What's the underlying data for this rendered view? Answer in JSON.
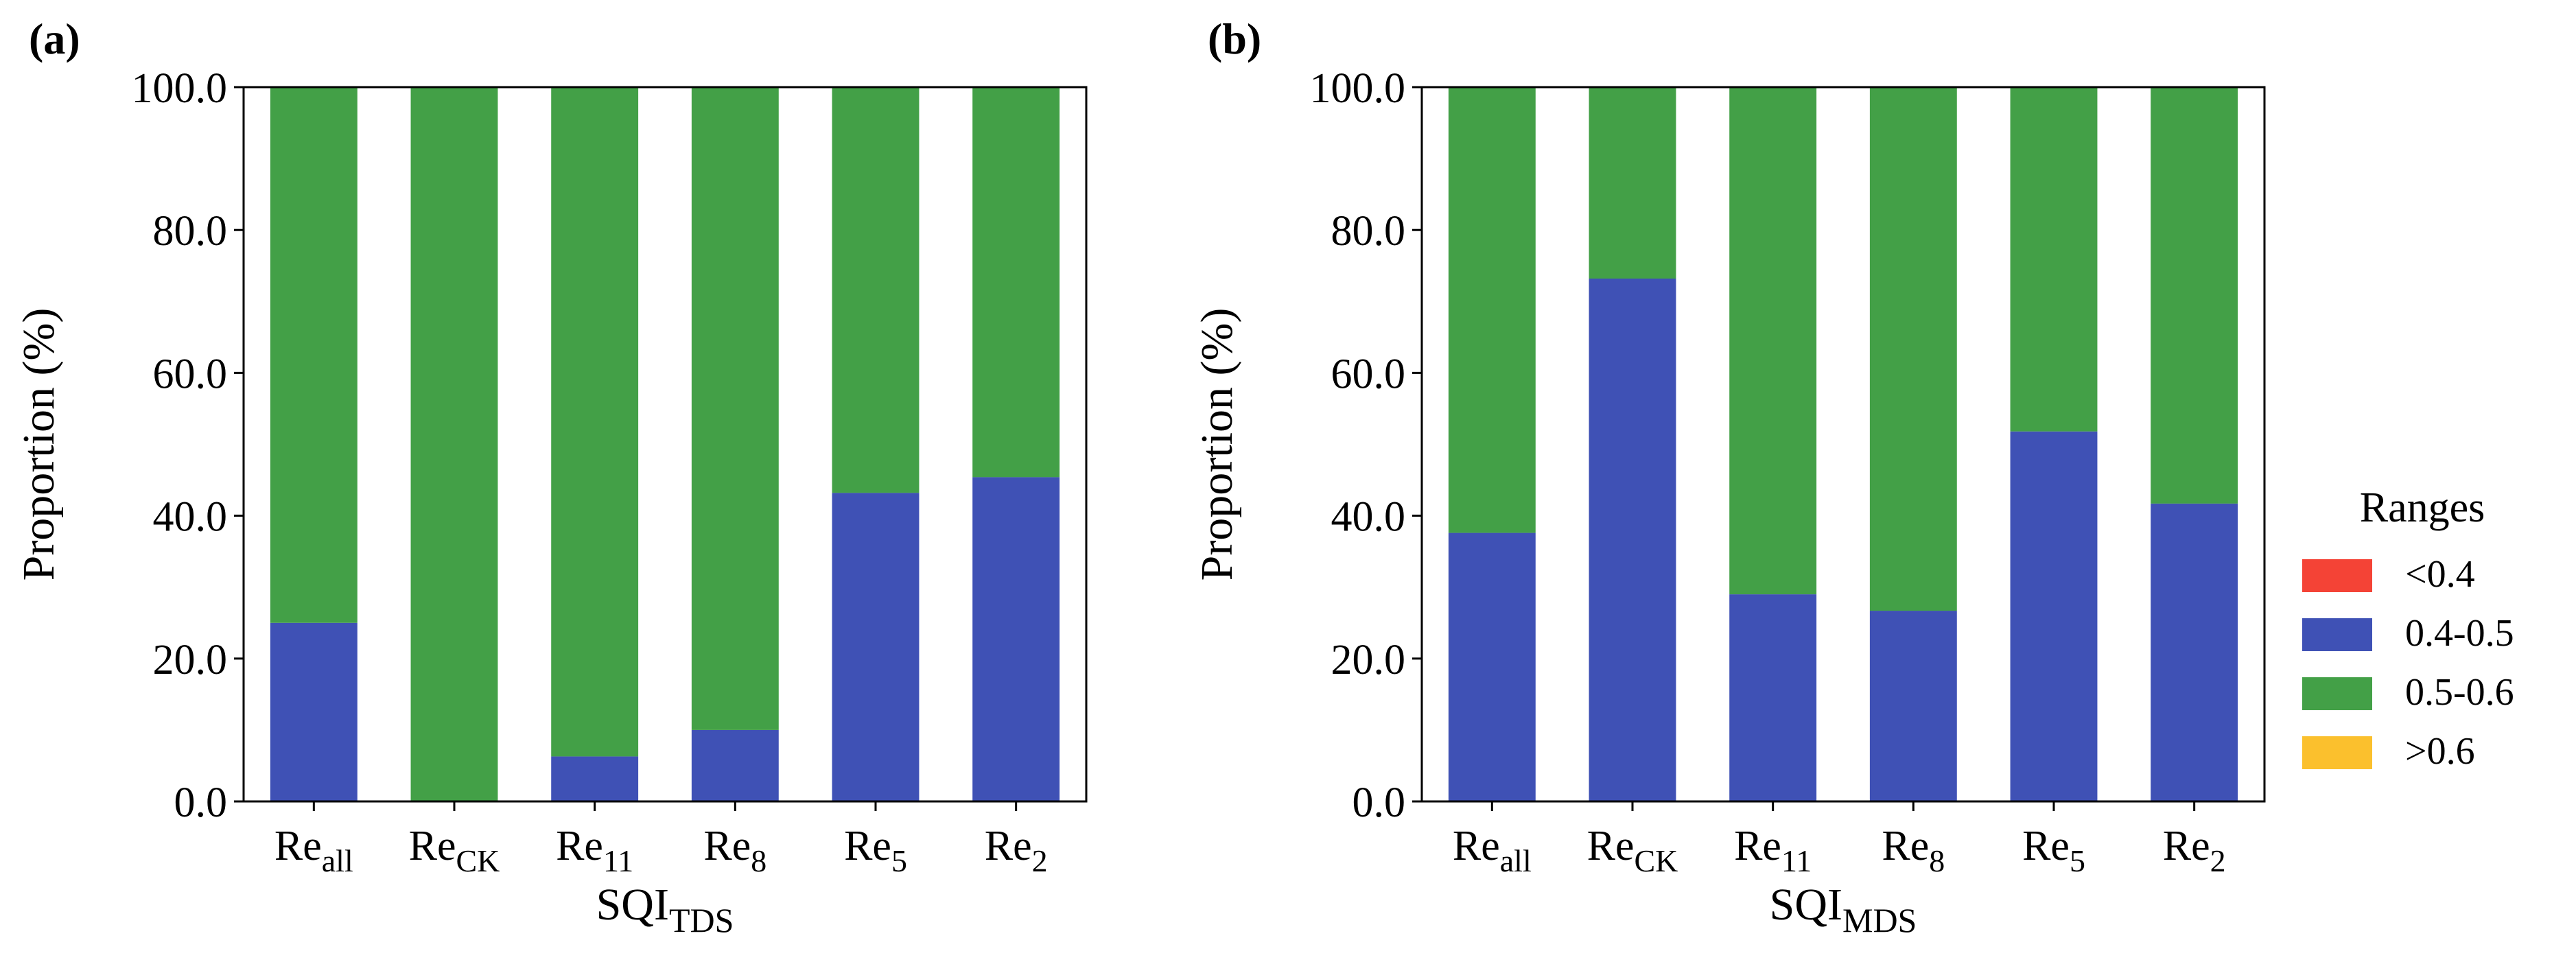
{
  "legend": {
    "title": "Ranges",
    "items": [
      {
        "label": "<0.4",
        "color": "#f44336"
      },
      {
        "label": "0.4-0.5",
        "color": "#3f51b5"
      },
      {
        "label": "0.5-0.6",
        "color": "#43a047"
      },
      {
        "label": ">0.6",
        "color": "#fbc02d"
      }
    ],
    "placement": "right"
  },
  "chart_data": [
    {
      "type": "bar",
      "stacked": true,
      "panel": "(a)",
      "xlabel": {
        "base": "SQI",
        "sub": "TDS"
      },
      "ylabel": "Proportion (%)",
      "ylim": [
        0,
        100
      ],
      "yticks": [
        "0.0",
        "20.0",
        "40.0",
        "60.0",
        "80.0",
        "100.0"
      ],
      "categories": [
        {
          "base": "Re",
          "sub": "all"
        },
        {
          "base": "Re",
          "sub": "CK"
        },
        {
          "base": "Re",
          "sub": "11"
        },
        {
          "base": "Re",
          "sub": "8"
        },
        {
          "base": "Re",
          "sub": "5"
        },
        {
          "base": "Re",
          "sub": "2"
        }
      ],
      "series": [
        {
          "name": "<0.4",
          "values": [
            0,
            0,
            0,
            0,
            0,
            0
          ]
        },
        {
          "name": "0.4-0.5",
          "values": [
            25.0,
            0.0,
            6.3,
            10.0,
            43.2,
            45.4
          ]
        },
        {
          "name": "0.5-0.6",
          "values": [
            75.0,
            100.0,
            93.7,
            90.0,
            56.8,
            54.6
          ]
        },
        {
          "name": ">0.6",
          "values": [
            0,
            0,
            0,
            0,
            0,
            0
          ]
        }
      ],
      "grid": false
    },
    {
      "type": "bar",
      "stacked": true,
      "panel": "(b)",
      "xlabel": {
        "base": "SQI",
        "sub": "MDS"
      },
      "ylabel": "Proportion (%)",
      "ylim": [
        0,
        100
      ],
      "yticks": [
        "0.0",
        "20.0",
        "40.0",
        "60.0",
        "80.0",
        "100.0"
      ],
      "categories": [
        {
          "base": "Re",
          "sub": "all"
        },
        {
          "base": "Re",
          "sub": "CK"
        },
        {
          "base": "Re",
          "sub": "11"
        },
        {
          "base": "Re",
          "sub": "8"
        },
        {
          "base": "Re",
          "sub": "5"
        },
        {
          "base": "Re",
          "sub": "2"
        }
      ],
      "series": [
        {
          "name": "<0.4",
          "values": [
            0,
            0,
            0,
            0,
            0,
            0
          ]
        },
        {
          "name": "0.4-0.5",
          "values": [
            37.6,
            73.2,
            29.0,
            26.7,
            51.8,
            41.7
          ]
        },
        {
          "name": "0.5-0.6",
          "values": [
            62.4,
            26.8,
            71.0,
            73.3,
            48.2,
            58.3
          ]
        },
        {
          "name": ">0.6",
          "values": [
            0,
            0,
            0,
            0,
            0,
            0
          ]
        }
      ],
      "grid": false
    }
  ]
}
